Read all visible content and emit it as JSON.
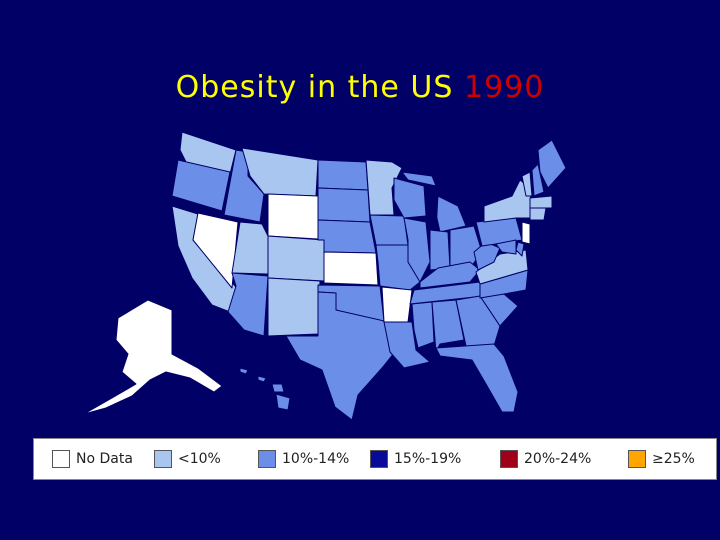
{
  "title": {
    "text": "Obesity in the US",
    "year": "1990"
  },
  "colors": {
    "background": "#000066",
    "title": "#ffff00",
    "year": "#cc0000",
    "no_data": "#ffffff",
    "lt10": "#a9c6f0",
    "p10_14": "#6b8ee8",
    "p15_19": "#0a0a9a",
    "p20_24": "#a0001a",
    "ge25": "#ffa500"
  },
  "legend": [
    {
      "label": "No Data",
      "color": "#ffffff"
    },
    {
      "label": "<10%",
      "color": "#a9c6f0"
    },
    {
      "label": "10%-14%",
      "color": "#6b8ee8"
    },
    {
      "label": "15%-19%",
      "color": "#0a0a9a"
    },
    {
      "label": "20%-24%",
      "color": "#a0001a"
    },
    {
      "label": "≥25%",
      "color": "#ffa500"
    }
  ],
  "states": {
    "WA": "lt10",
    "OR": "p10_14",
    "CA": "lt10",
    "NV": "no_data",
    "ID": "p10_14",
    "MT": "lt10",
    "WY": "no_data",
    "UT": "lt10",
    "CO": "lt10",
    "AZ": "p10_14",
    "NM": "lt10",
    "ND": "p10_14",
    "SD": "p10_14",
    "NE": "p10_14",
    "KS": "no_data",
    "OK": "p10_14",
    "TX": "p10_14",
    "MN": "lt10",
    "IA": "p10_14",
    "MO": "p10_14",
    "AR": "no_data",
    "LA": "p10_14",
    "WI": "p10_14",
    "IL": "p10_14",
    "MI": "p10_14",
    "IN": "p10_14",
    "OH": "p10_14",
    "KY": "p10_14",
    "TN": "p10_14",
    "MS": "p10_14",
    "AL": "p10_14",
    "GA": "p10_14",
    "FL": "p10_14",
    "SC": "p10_14",
    "NC": "p10_14",
    "VA": "lt10",
    "WV": "p10_14",
    "PA": "p10_14",
    "NY": "lt10",
    "VT": "lt10",
    "NH": "p10_14",
    "ME": "p10_14",
    "MA": "lt10",
    "CT": "lt10",
    "NJ": "no_data",
    "DE": "p10_14",
    "MD": "p10_14",
    "AK": "no_data",
    "HI": "p10_14"
  }
}
